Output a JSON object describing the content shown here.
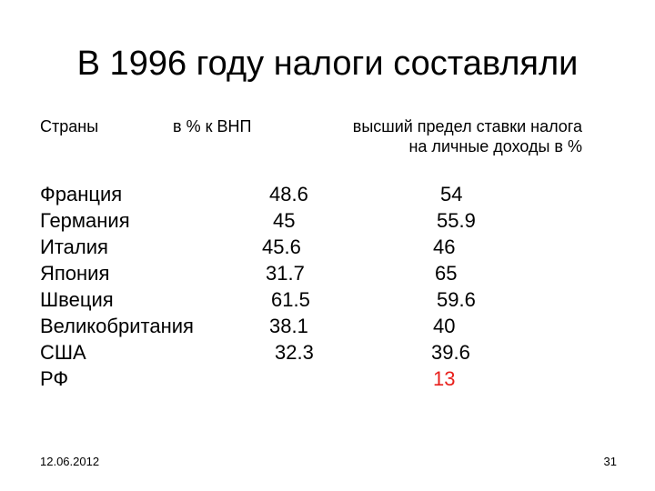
{
  "slide": {
    "title": "В 1996 году налоги составляли",
    "footer_date": "12.06.2012",
    "page_number": "31"
  },
  "table": {
    "headers": {
      "country": "Страны",
      "gnp": "в % к ВНП",
      "rate_line1": "высший предел ставки налога",
      "rate_line2": "на личные доходы в %"
    },
    "rows": [
      {
        "country": "Франция",
        "gnp": "48.6",
        "rate": "54"
      },
      {
        "country": "Германия",
        "gnp": "45",
        "rate": "55.9"
      },
      {
        "country": "Италия",
        "gnp": "45.6",
        "rate": "46"
      },
      {
        "country": "Япония",
        "gnp": "31.7",
        "rate": "65"
      },
      {
        "country": "Швеция",
        "gnp": "61.5",
        "rate": "59.6"
      },
      {
        "country": "Великобритания",
        "gnp": "38.1",
        "rate": "40"
      },
      {
        "country": "США",
        "gnp": "32.3",
        "rate": "39.6"
      },
      {
        "country": "РФ",
        "gnp": "",
        "rate": "13"
      }
    ]
  },
  "colors": {
    "highlight": "#e8201c"
  }
}
